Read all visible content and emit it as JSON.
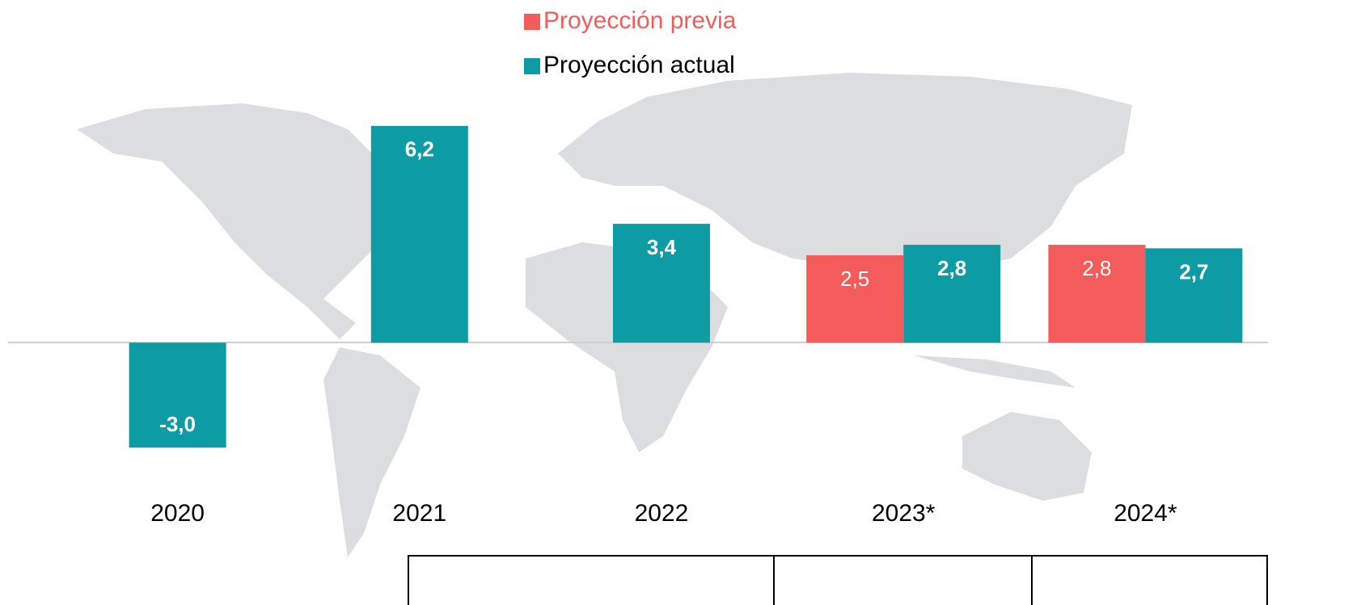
{
  "chart_data": {
    "type": "bar",
    "categories": [
      "2020",
      "2021",
      "2022",
      "2023*",
      "2024*"
    ],
    "series": [
      {
        "name": "Proyección previa",
        "color": "#f45b5b",
        "values": [
          null,
          null,
          null,
          2.5,
          2.8
        ],
        "value_labels": [
          null,
          null,
          null,
          "2,5",
          "2,8"
        ]
      },
      {
        "name": "Proyección actual",
        "color": "#0e9ca4",
        "values": [
          -3.0,
          6.2,
          3.4,
          2.8,
          2.7
        ],
        "value_labels": [
          "-3,0",
          "6,2",
          "3,4",
          "2,8",
          "2,7"
        ]
      }
    ],
    "ylim": [
      -7.5,
      9.8
    ]
  }
}
